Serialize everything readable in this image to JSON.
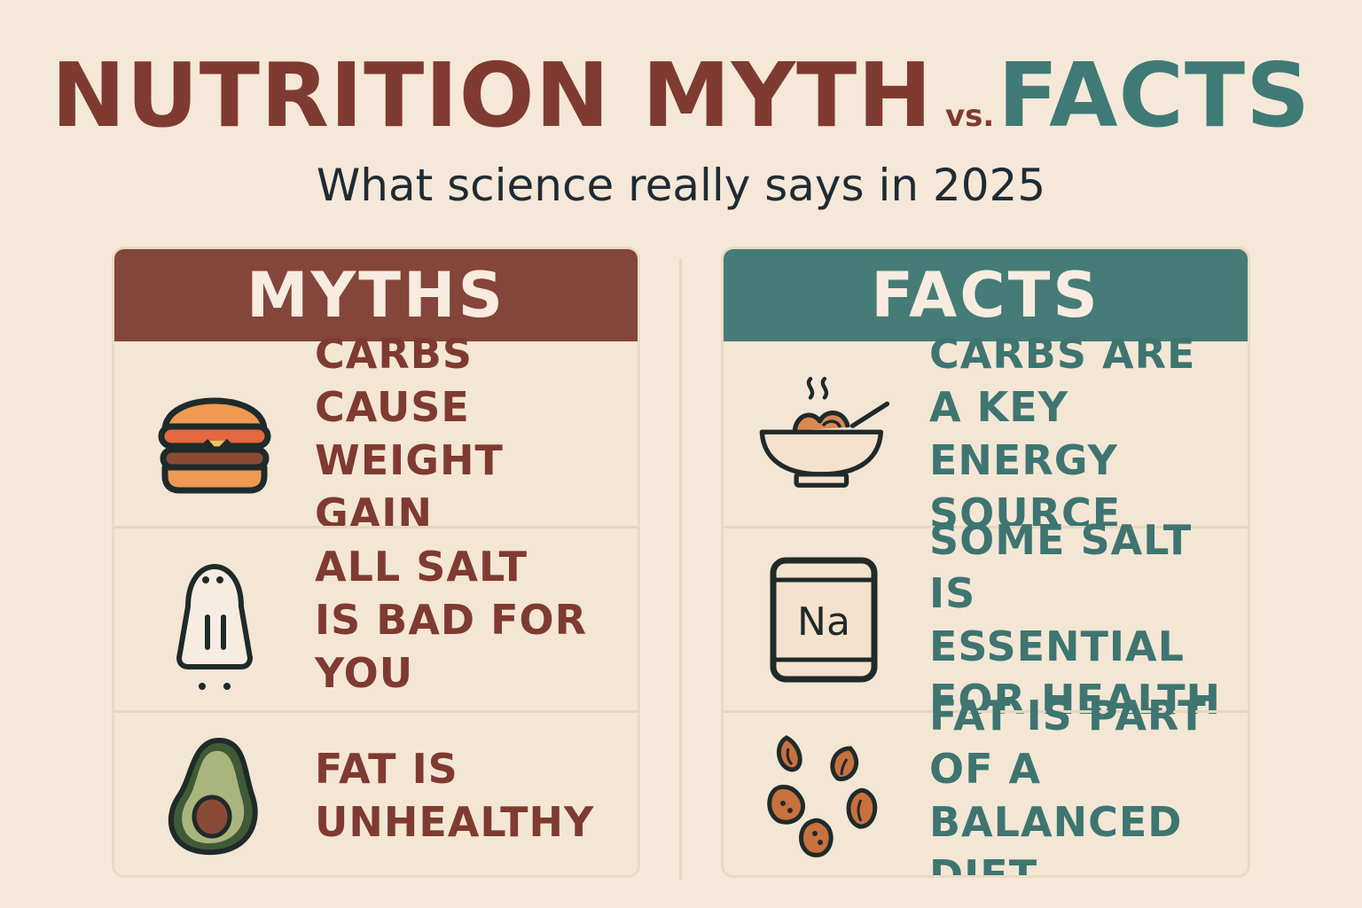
{
  "title": {
    "part1": "NUTRITION MYTH",
    "vs": "vs.",
    "part2": "FACTS"
  },
  "subtitle": "What science really says in 2025",
  "myths": {
    "header": "MYTHS",
    "items": [
      {
        "icon": "burger-icon",
        "text": "CARBS CAUSE\nWEIGHT GAIN"
      },
      {
        "icon": "salt-shaker-icon",
        "text": "ALL SALT\nIS BAD FOR\nYOU"
      },
      {
        "icon": "avocado-icon",
        "text": "FAT IS\nUNHEALTHY"
      }
    ]
  },
  "facts": {
    "header": "FACTS",
    "items": [
      {
        "icon": "bowl-icon",
        "text": "CARBS ARE\nA KEY ENERGY\nSOURCE"
      },
      {
        "icon": "sodium-tile-icon",
        "text": "SOME SALT\nIS ESSENTIAL\nFOR HEALTH",
        "tile_symbol": "Na"
      },
      {
        "icon": "nuts-icon",
        "text": "FAT IS PART\nOF A BALANCED\nDIET"
      }
    ]
  },
  "colors": {
    "background": "#f5e8d8",
    "myth_accent": "#84453a",
    "fact_accent": "#457c77",
    "myth_text": "#7f3a31",
    "fact_text": "#3e7571",
    "subtitle_text": "#1f2b33"
  }
}
